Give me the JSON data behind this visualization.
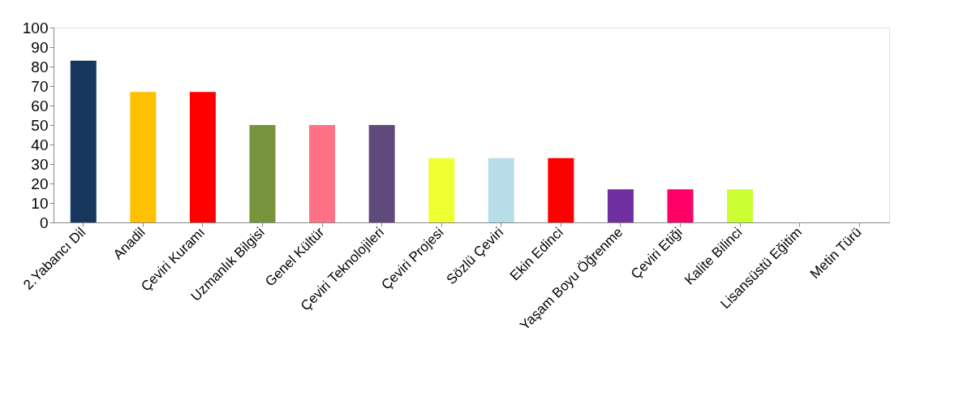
{
  "chart_data": {
    "type": "bar",
    "categories": [
      "2.Yabancı Dil",
      "Anadil",
      "Çeviri Kuramı",
      "Uzmanlık Bilgisi",
      "Genel Kültür",
      "Çeviri Teknolojileri",
      "Çeviri Projesi",
      "Sözlü Çeviri",
      "Ekin Edinci",
      "Yaşam Boyu Öğrenme",
      "Çeviri Etiği",
      "Kalite Bilinci",
      "Lisansüstü Eğitim",
      "Metin Türü"
    ],
    "values": [
      83,
      67,
      67,
      50,
      50,
      50,
      33,
      33,
      33,
      17,
      17,
      17,
      0,
      0
    ],
    "colors": [
      "#17375e",
      "#ffc000",
      "#ff0000",
      "#77933c",
      "#ff7185",
      "#604a7b",
      "#eeff33",
      "#b7dde8",
      "#ff0000",
      "#7030a0",
      "#ff0066",
      "#ccff33",
      "#17375e",
      "#17375e"
    ],
    "ylim": [
      0,
      100
    ],
    "yticks": [
      0,
      10,
      20,
      30,
      40,
      50,
      60,
      70,
      80,
      90,
      100
    ]
  }
}
